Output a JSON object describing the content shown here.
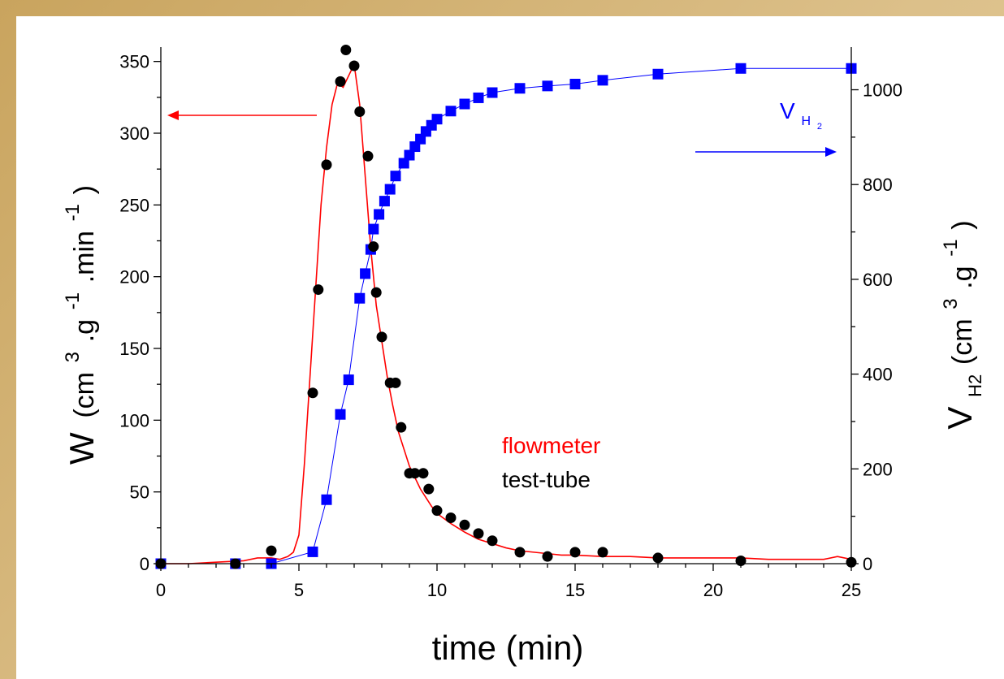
{
  "chart_data": {
    "type": "scatter",
    "xlabel": "time (min)",
    "xlim": [
      0,
      25
    ],
    "x_ticks": [
      0,
      5,
      10,
      15,
      20,
      25
    ],
    "y_left": {
      "label_main": "W",
      "label_unit": "(cm",
      "label_sup1": "3",
      "label_mid": ".g",
      "label_sup2": "-1",
      "label_mid2": ".min",
      "label_sup3": "-1",
      "label_end": ")",
      "ylim": [
        0,
        360
      ],
      "ticks": [
        0,
        50,
        100,
        150,
        200,
        250,
        300,
        350
      ]
    },
    "y_right": {
      "label_main": "V",
      "label_sub": "H2",
      "label_unit": "(cm",
      "label_sup1": "3",
      "label_mid": ".g",
      "label_sup2": "-1",
      "label_end": ")",
      "ylim": [
        0,
        1090
      ],
      "ticks": [
        0,
        200,
        400,
        600,
        800,
        1000
      ]
    },
    "legend": {
      "flowmeter": "flowmeter",
      "testtube": "test-tube",
      "vh2_main": "V",
      "vh2_sub": "H",
      "vh2_subsub": "2"
    },
    "colors": {
      "flowmeter": "#ff0000",
      "testtube": "#000000",
      "vh2": "#0000ff"
    },
    "series": [
      {
        "name": "flowmeter",
        "axis": "left",
        "style": "line",
        "x": [
          0,
          1,
          2,
          3,
          3.5,
          4,
          4.3,
          4.6,
          4.8,
          5.0,
          5.2,
          5.4,
          5.6,
          5.8,
          6.0,
          6.2,
          6.4,
          6.6,
          6.8,
          7.0,
          7.2,
          7.4,
          7.6,
          7.8,
          8.0,
          8.2,
          8.4,
          8.6,
          8.8,
          9.0,
          9.2,
          9.4,
          9.6,
          9.8,
          10.0,
          10.5,
          11.0,
          11.5,
          12.0,
          12.5,
          13.0,
          13.5,
          14.0,
          14.5,
          15.0,
          16.0,
          17.0,
          18.0,
          19.0,
          20.0,
          21.0,
          22.0,
          23.0,
          24.0,
          24.5,
          25.0
        ],
        "y": [
          0,
          0,
          1,
          2,
          4,
          4,
          3,
          5,
          8,
          20,
          70,
          130,
          190,
          250,
          290,
          320,
          335,
          332,
          340,
          348,
          320,
          270,
          220,
          180,
          155,
          130,
          110,
          92,
          80,
          68,
          60,
          52,
          46,
          40,
          35,
          28,
          22,
          17,
          14,
          11,
          9,
          8,
          7,
          6,
          6,
          5,
          5,
          4,
          4,
          4,
          4,
          3,
          3,
          3,
          5,
          3
        ]
      },
      {
        "name": "test-tube",
        "axis": "left",
        "style": "circle",
        "x": [
          0,
          2.7,
          4.0,
          5.5,
          5.7,
          6.0,
          6.5,
          6.7,
          7.0,
          7.2,
          7.5,
          7.7,
          7.8,
          8.0,
          8.3,
          8.5,
          8.7,
          9.0,
          9.2,
          9.5,
          9.7,
          10.0,
          10.5,
          11.0,
          11.5,
          12.0,
          13.0,
          14.0,
          15.0,
          16.0,
          18.0,
          21.0,
          25.0
        ],
        "y": [
          0,
          0,
          9,
          119,
          191,
          278,
          336,
          358,
          347,
          315,
          284,
          221,
          189,
          158,
          126,
          126,
          95,
          63,
          63,
          63,
          52,
          37,
          32,
          27,
          21,
          16,
          8,
          5,
          8,
          8,
          4,
          2,
          1
        ]
      },
      {
        "name": "V_H2",
        "axis": "right",
        "style": "square",
        "x": [
          0,
          2.7,
          4.0,
          5.5,
          6.0,
          6.5,
          6.8,
          7.2,
          7.4,
          7.6,
          7.7,
          7.9,
          8.1,
          8.3,
          8.5,
          8.8,
          9.0,
          9.2,
          9.4,
          9.6,
          9.8,
          10.0,
          10.5,
          11.0,
          11.5,
          12.0,
          13.0,
          14.0,
          15.0,
          16.0,
          18.0,
          21.0,
          25.0
        ],
        "y": [
          0,
          0,
          0,
          25,
          135,
          315,
          388,
          560,
          612,
          663,
          706,
          737,
          765,
          790,
          818,
          845,
          862,
          880,
          896,
          912,
          925,
          938,
          955,
          970,
          983,
          994,
          1003,
          1008,
          1012,
          1020,
          1033,
          1045,
          1045
        ]
      }
    ]
  }
}
